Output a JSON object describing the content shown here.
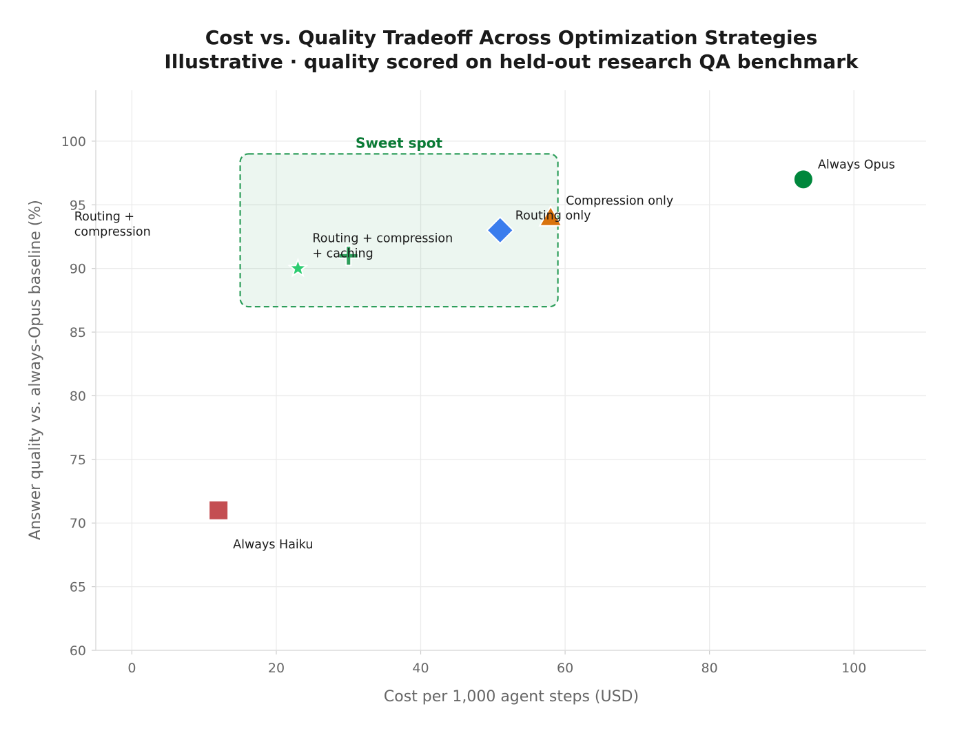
{
  "chart_data": {
    "type": "scatter",
    "title_lines": [
      "Cost vs. Quality Tradeoff Across Optimization Strategies",
      "Illustrative · quality scored on held-out research QA benchmark"
    ],
    "xlabel": "Cost per 1,000 agent steps (USD)",
    "ylabel": "Answer quality vs. always-Opus baseline (%)",
    "xlim": [
      -5,
      110
    ],
    "ylim": [
      60,
      104
    ],
    "xticks": [
      0,
      20,
      40,
      60,
      80,
      100
    ],
    "yticks": [
      60,
      65,
      70,
      75,
      80,
      85,
      90,
      95,
      100
    ],
    "grid": true,
    "points": [
      {
        "label": "Always Opus",
        "x": 93,
        "y": 97,
        "marker": "circle",
        "color": "#00873c"
      },
      {
        "label": "Always Haiku",
        "x": 12,
        "y": 71,
        "marker": "square",
        "color": "#c44e52"
      },
      {
        "label": "Routing only",
        "x": 51,
        "y": 93,
        "marker": "diamond",
        "color": "#3b7ded"
      },
      {
        "label": "Compression only",
        "x": 58,
        "y": 94,
        "marker": "triangle",
        "color": "#d9730d"
      },
      {
        "label": "Routing + compression",
        "x": 30,
        "y": 91,
        "marker": "plus",
        "color": "#2e9e5b"
      },
      {
        "label": "Routing + compression + caching",
        "x": 23,
        "y": 90,
        "marker": "star",
        "color": "#2ecc71"
      }
    ],
    "annotations": {
      "sweet_spot": {
        "label": "Sweet spot",
        "x_range": [
          15,
          59
        ],
        "y_range": [
          87,
          99
        ],
        "color": "#2e9e5b"
      }
    }
  }
}
